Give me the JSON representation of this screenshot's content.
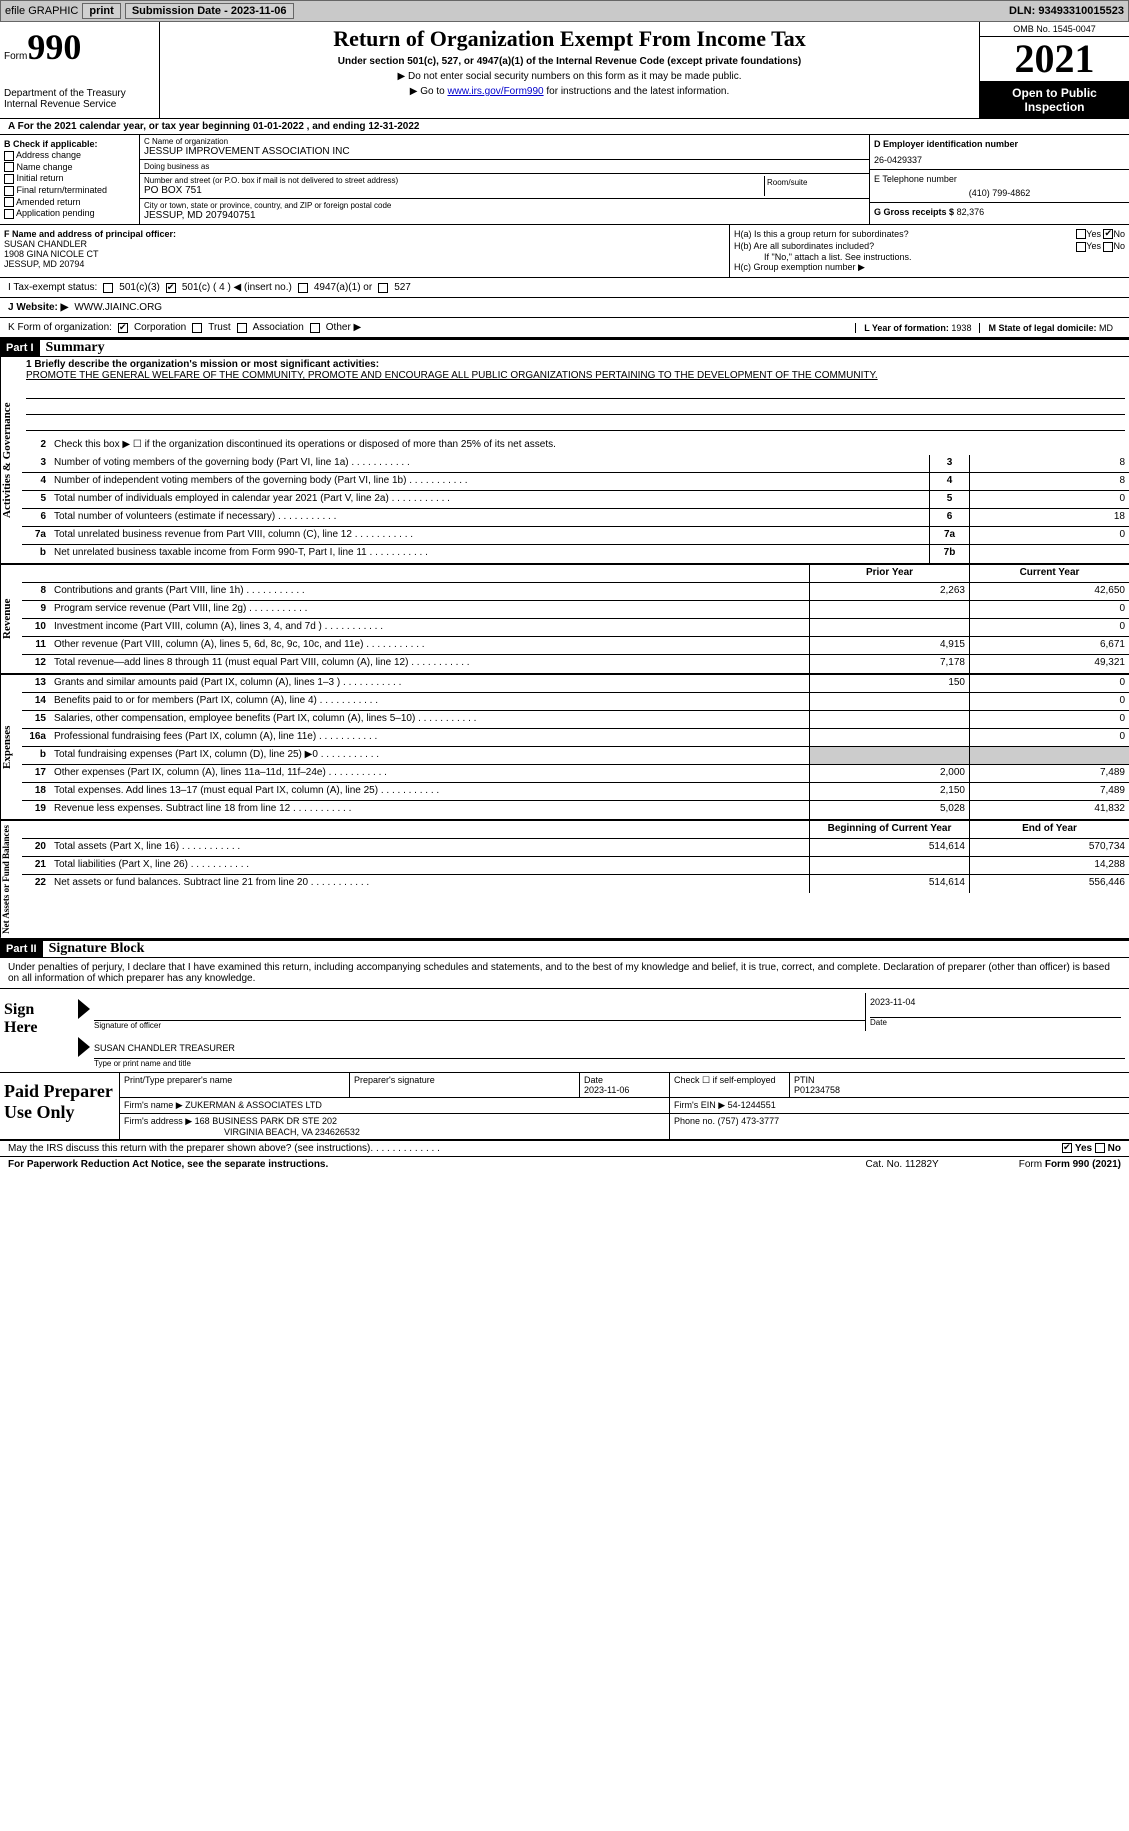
{
  "topbar": {
    "efile": "efile GRAPHIC",
    "print": "print",
    "submission_label": "Submission Date - 2023-11-06",
    "dln": "DLN: 93493310015523"
  },
  "header": {
    "form_word": "Form",
    "form_num": "990",
    "dept": "Department of the Treasury",
    "irs": "Internal Revenue Service",
    "title": "Return of Organization Exempt From Income Tax",
    "sub": "Under section 501(c), 527, or 4947(a)(1) of the Internal Revenue Code (except private foundations)",
    "note1": "▶ Do not enter social security numbers on this form as it may be made public.",
    "note2_a": "▶ Go to ",
    "note2_link": "www.irs.gov/Form990",
    "note2_b": " for instructions and the latest information.",
    "omb": "OMB No. 1545-0047",
    "year": "2021",
    "inspect": "Open to Public Inspection"
  },
  "row_a": "A For the 2021 calendar year, or tax year beginning 01-01-2022   , and ending 12-31-2022",
  "col_b": {
    "title": "B Check if applicable:",
    "items": [
      "Address change",
      "Name change",
      "Initial return",
      "Final return/terminated",
      "Amended return",
      "Application pending"
    ]
  },
  "col_c": {
    "name_label": "C Name of organization",
    "name": "JESSUP IMPROVEMENT ASSOCIATION INC",
    "dba_label": "Doing business as",
    "dba": "",
    "addr_label": "Number and street (or P.O. box if mail is not delivered to street address)",
    "room_label": "Room/suite",
    "addr": "PO BOX 751",
    "city_label": "City or town, state or province, country, and ZIP or foreign postal code",
    "city": "JESSUP, MD  207940751"
  },
  "col_d": {
    "ein_label": "D Employer identification number",
    "ein": "26-0429337",
    "phone_label": "E Telephone number",
    "phone": "(410) 799-4862",
    "gross_label": "G Gross receipts $",
    "gross": "82,376"
  },
  "row_f": {
    "f_label": "F  Name and address of principal officer:",
    "f_name": "SUSAN CHANDLER",
    "f_addr1": "1908 GINA NICOLE CT",
    "f_addr2": "JESSUP, MD  20794",
    "ha": "H(a)  Is this a group return for subordinates?",
    "hb": "H(b)  Are all subordinates included?",
    "hb_note": "If \"No,\" attach a list. See instructions.",
    "hc": "H(c)  Group exemption number ▶",
    "yes": "Yes",
    "no": "No"
  },
  "row_i": {
    "label": "I   Tax-exempt status:",
    "o1": "501(c)(3)",
    "o2": "501(c) ( 4 ) ◀ (insert no.)",
    "o3": "4947(a)(1) or",
    "o4": "527"
  },
  "row_j": {
    "label": "J   Website: ▶",
    "val": "WWW.JIAINC.ORG"
  },
  "row_k": {
    "label": "K Form of organization:",
    "o1": "Corporation",
    "o2": "Trust",
    "o3": "Association",
    "o4": "Other ▶",
    "l_label": "L Year of formation:",
    "l_val": "1938",
    "m_label": "M State of legal domicile:",
    "m_val": "MD"
  },
  "parts": {
    "p1": "Part I",
    "p1_title": "Summary",
    "p2": "Part II",
    "p2_title": "Signature Block"
  },
  "summary": {
    "line1_label": "1  Briefly describe the organization's mission or most significant activities:",
    "line1_text": "PROMOTE THE GENERAL WELFARE OF THE COMMUNITY, PROMOTE AND ENCOURAGE ALL PUBLIC ORGANIZATIONS PERTAINING TO THE DEVELOPMENT OF THE COMMUNITY.",
    "line2": "Check this box ▶ ☐ if the organization discontinued its operations or disposed of more than 25% of its net assets.",
    "rows_gov": [
      {
        "n": "3",
        "d": "Number of voting members of the governing body (Part VI, line 1a)",
        "box": "3",
        "v": "8"
      },
      {
        "n": "4",
        "d": "Number of independent voting members of the governing body (Part VI, line 1b)",
        "box": "4",
        "v": "8"
      },
      {
        "n": "5",
        "d": "Total number of individuals employed in calendar year 2021 (Part V, line 2a)",
        "box": "5",
        "v": "0"
      },
      {
        "n": "6",
        "d": "Total number of volunteers (estimate if necessary)",
        "box": "6",
        "v": "18"
      },
      {
        "n": "7a",
        "d": "Total unrelated business revenue from Part VIII, column (C), line 12",
        "box": "7a",
        "v": "0"
      },
      {
        "n": "b",
        "d": "Net unrelated business taxable income from Form 990-T, Part I, line 11",
        "box": "7b",
        "v": ""
      }
    ],
    "hdr_prior": "Prior Year",
    "hdr_curr": "Current Year",
    "rows_rev": [
      {
        "n": "8",
        "d": "Contributions and grants (Part VIII, line 1h)",
        "p": "2,263",
        "c": "42,650"
      },
      {
        "n": "9",
        "d": "Program service revenue (Part VIII, line 2g)",
        "p": "",
        "c": "0"
      },
      {
        "n": "10",
        "d": "Investment income (Part VIII, column (A), lines 3, 4, and 7d )",
        "p": "",
        "c": "0"
      },
      {
        "n": "11",
        "d": "Other revenue (Part VIII, column (A), lines 5, 6d, 8c, 9c, 10c, and 11e)",
        "p": "4,915",
        "c": "6,671"
      },
      {
        "n": "12",
        "d": "Total revenue—add lines 8 through 11 (must equal Part VIII, column (A), line 12)",
        "p": "7,178",
        "c": "49,321"
      }
    ],
    "rows_exp": [
      {
        "n": "13",
        "d": "Grants and similar amounts paid (Part IX, column (A), lines 1–3 )",
        "p": "150",
        "c": "0"
      },
      {
        "n": "14",
        "d": "Benefits paid to or for members (Part IX, column (A), line 4)",
        "p": "",
        "c": "0"
      },
      {
        "n": "15",
        "d": "Salaries, other compensation, employee benefits (Part IX, column (A), lines 5–10)",
        "p": "",
        "c": "0"
      },
      {
        "n": "16a",
        "d": "Professional fundraising fees (Part IX, column (A), line 11e)",
        "p": "",
        "c": "0"
      },
      {
        "n": "b",
        "d": "Total fundraising expenses (Part IX, column (D), line 25) ▶0",
        "p": "shade",
        "c": "shade"
      },
      {
        "n": "17",
        "d": "Other expenses (Part IX, column (A), lines 11a–11d, 11f–24e)",
        "p": "2,000",
        "c": "7,489"
      },
      {
        "n": "18",
        "d": "Total expenses. Add lines 13–17 (must equal Part IX, column (A), line 25)",
        "p": "2,150",
        "c": "7,489"
      },
      {
        "n": "19",
        "d": "Revenue less expenses. Subtract line 18 from line 12",
        "p": "5,028",
        "c": "41,832"
      }
    ],
    "hdr_beg": "Beginning of Current Year",
    "hdr_end": "End of Year",
    "rows_net": [
      {
        "n": "20",
        "d": "Total assets (Part X, line 16)",
        "p": "514,614",
        "c": "570,734"
      },
      {
        "n": "21",
        "d": "Total liabilities (Part X, line 26)",
        "p": "",
        "c": "14,288"
      },
      {
        "n": "22",
        "d": "Net assets or fund balances. Subtract line 21 from line 20",
        "p": "514,614",
        "c": "556,446"
      }
    ],
    "side_labels": {
      "gov": "Activities & Governance",
      "rev": "Revenue",
      "exp": "Expenses",
      "net": "Net Assets or Fund Balances"
    }
  },
  "sig": {
    "intro": "Under penalties of perjury, I declare that I have examined this return, including accompanying schedules and statements, and to the best of my knowledge and belief, it is true, correct, and complete. Declaration of preparer (other than officer) is based on all information of which preparer has any knowledge.",
    "sign_here": "Sign Here",
    "sig_of_officer": "Signature of officer",
    "date_label": "Date",
    "sig_date": "2023-11-04",
    "name_title": "SUSAN CHANDLER  TREASURER",
    "name_caption": "Type or print name and title"
  },
  "paid": {
    "label": "Paid Preparer Use Only",
    "r1": {
      "a": "Print/Type preparer's name",
      "b": "Preparer's signature",
      "c_label": "Date",
      "c": "2023-11-06",
      "d": "Check ☐ if self-employed",
      "e_label": "PTIN",
      "e": "P01234758"
    },
    "r2": {
      "a": "Firm's name   ▶",
      "b": "ZUKERMAN & ASSOCIATES LTD",
      "c": "Firm's EIN ▶",
      "d": "54-1244551"
    },
    "r3": {
      "a": "Firm's address ▶",
      "b": "168 BUSINESS PARK DR STE 202",
      "c": "Phone no.",
      "d": "(757) 473-3777"
    },
    "r3b": "VIRGINIA BEACH, VA  234626532"
  },
  "footer": {
    "discuss": "May the IRS discuss this return with the preparer shown above? (see instructions)",
    "yes": "Yes",
    "no": "No",
    "paperwork": "For Paperwork Reduction Act Notice, see the separate instructions.",
    "cat": "Cat. No. 11282Y",
    "form": "Form 990 (2021)"
  }
}
